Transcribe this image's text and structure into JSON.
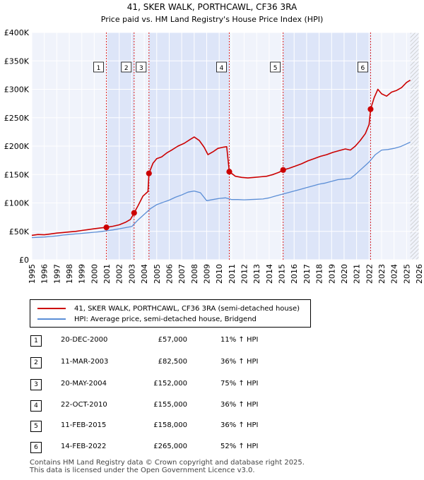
{
  "chart_data": {
    "type": "line",
    "title": "41, SKER WALK, PORTHCAWL, CF36 3RA",
    "subtitle": "Price paid vs. HM Land Registry's House Price Index (HPI)",
    "xlabel": "",
    "ylabel": "",
    "xlim": [
      1995,
      2026
    ],
    "ylim": [
      0,
      400000
    ],
    "y_ticks": [
      {
        "value": 0,
        "label": "£0"
      },
      {
        "value": 50000,
        "label": "£50K"
      },
      {
        "value": 100000,
        "label": "£100K"
      },
      {
        "value": 150000,
        "label": "£150K"
      },
      {
        "value": 200000,
        "label": "£200K"
      },
      {
        "value": 250000,
        "label": "£250K"
      },
      {
        "value": 300000,
        "label": "£300K"
      },
      {
        "value": 350000,
        "label": "£350K"
      },
      {
        "value": 400000,
        "label": "£400K"
      }
    ],
    "x_ticks": [
      "1995",
      "1996",
      "1997",
      "1998",
      "1999",
      "2000",
      "2001",
      "2002",
      "2003",
      "2004",
      "2005",
      "2006",
      "2007",
      "2008",
      "2009",
      "2010",
      "2011",
      "2012",
      "2013",
      "2014",
      "2015",
      "2016",
      "2017",
      "2018",
      "2019",
      "2020",
      "2021",
      "2022",
      "2023",
      "2024",
      "2025",
      "2026"
    ],
    "grid": true,
    "forecast_start": 2025.3,
    "series": [
      {
        "name": "41, SKER WALK, PORTHCAWL, CF36 3RA (semi-detached house)",
        "color": "#cc0000",
        "points": [
          [
            1995.0,
            43000
          ],
          [
            1995.5,
            44500
          ],
          [
            1996.0,
            44000
          ],
          [
            1996.5,
            45500
          ],
          [
            1997.0,
            47000
          ],
          [
            1997.5,
            48000
          ],
          [
            1998.0,
            49000
          ],
          [
            1998.5,
            50000
          ],
          [
            1999.0,
            51500
          ],
          [
            1999.5,
            53000
          ],
          [
            2000.0,
            54500
          ],
          [
            2000.5,
            56000
          ],
          [
            2000.97,
            57000
          ],
          [
            2001.5,
            59000
          ],
          [
            2002.0,
            61500
          ],
          [
            2002.5,
            66000
          ],
          [
            2002.9,
            71000
          ],
          [
            2003.19,
            82500
          ],
          [
            2003.5,
            95000
          ],
          [
            2003.9,
            112000
          ],
          [
            2004.3,
            120000
          ],
          [
            2004.38,
            152000
          ],
          [
            2004.7,
            170000
          ],
          [
            2005.0,
            178000
          ],
          [
            2005.4,
            181000
          ],
          [
            2005.8,
            188000
          ],
          [
            2006.2,
            193000
          ],
          [
            2006.7,
            200000
          ],
          [
            2007.2,
            205000
          ],
          [
            2007.7,
            212000
          ],
          [
            2008.0,
            216000
          ],
          [
            2008.4,
            210000
          ],
          [
            2008.8,
            198000
          ],
          [
            2009.1,
            185000
          ],
          [
            2009.5,
            190000
          ],
          [
            2009.9,
            196000
          ],
          [
            2010.3,
            198000
          ],
          [
            2010.6,
            199000
          ],
          [
            2010.81,
            155000
          ],
          [
            2011.3,
            147000
          ],
          [
            2011.8,
            145000
          ],
          [
            2012.3,
            144000
          ],
          [
            2012.8,
            145000
          ],
          [
            2013.3,
            146000
          ],
          [
            2013.8,
            147000
          ],
          [
            2014.3,
            150000
          ],
          [
            2014.8,
            154000
          ],
          [
            2015.12,
            158000
          ],
          [
            2015.6,
            161000
          ],
          [
            2016.1,
            165000
          ],
          [
            2016.6,
            169000
          ],
          [
            2017.1,
            174000
          ],
          [
            2017.6,
            178000
          ],
          [
            2018.1,
            182000
          ],
          [
            2018.6,
            185000
          ],
          [
            2019.1,
            189000
          ],
          [
            2019.6,
            192000
          ],
          [
            2020.1,
            195000
          ],
          [
            2020.5,
            193000
          ],
          [
            2020.9,
            200000
          ],
          [
            2021.3,
            210000
          ],
          [
            2021.7,
            222000
          ],
          [
            2022.0,
            238000
          ],
          [
            2022.12,
            265000
          ],
          [
            2022.4,
            285000
          ],
          [
            2022.7,
            300000
          ],
          [
            2023.0,
            292000
          ],
          [
            2023.4,
            288000
          ],
          [
            2023.8,
            295000
          ],
          [
            2024.2,
            298000
          ],
          [
            2024.6,
            303000
          ],
          [
            2025.0,
            312000
          ],
          [
            2025.3,
            316000
          ]
        ]
      },
      {
        "name": "HPI: Average price, semi-detached house, Bridgend",
        "color": "#5b8ed6",
        "points": [
          [
            1995.0,
            39000
          ],
          [
            1995.5,
            39500
          ],
          [
            1996.0,
            40000
          ],
          [
            1996.5,
            41000
          ],
          [
            1997.0,
            42000
          ],
          [
            1997.5,
            43500
          ],
          [
            1998.0,
            44500
          ],
          [
            1998.5,
            45500
          ],
          [
            1999.0,
            46500
          ],
          [
            1999.5,
            47500
          ],
          [
            2000.0,
            48500
          ],
          [
            2000.5,
            49500
          ],
          [
            2001.0,
            51000
          ],
          [
            2001.5,
            52500
          ],
          [
            2002.0,
            54500
          ],
          [
            2002.5,
            56500
          ],
          [
            2003.0,
            58500
          ],
          [
            2003.5,
            70000
          ],
          [
            2004.0,
            80000
          ],
          [
            2004.5,
            90000
          ],
          [
            2005.0,
            97000
          ],
          [
            2005.5,
            101000
          ],
          [
            2006.0,
            105000
          ],
          [
            2006.5,
            110000
          ],
          [
            2007.0,
            114000
          ],
          [
            2007.5,
            119000
          ],
          [
            2008.0,
            121000
          ],
          [
            2008.5,
            118000
          ],
          [
            2009.0,
            104000
          ],
          [
            2009.5,
            106000
          ],
          [
            2010.0,
            108000
          ],
          [
            2010.5,
            109000
          ],
          [
            2011.0,
            106000
          ],
          [
            2011.5,
            106000
          ],
          [
            2012.0,
            105500
          ],
          [
            2012.5,
            106000
          ],
          [
            2013.0,
            106500
          ],
          [
            2013.5,
            107000
          ],
          [
            2014.0,
            109000
          ],
          [
            2014.5,
            112000
          ],
          [
            2015.0,
            115000
          ],
          [
            2015.5,
            118000
          ],
          [
            2016.0,
            121000
          ],
          [
            2016.5,
            124000
          ],
          [
            2017.0,
            127000
          ],
          [
            2017.5,
            130000
          ],
          [
            2018.0,
            133000
          ],
          [
            2018.5,
            135000
          ],
          [
            2019.0,
            138000
          ],
          [
            2019.5,
            141000
          ],
          [
            2020.0,
            142000
          ],
          [
            2020.5,
            143000
          ],
          [
            2020.9,
            150000
          ],
          [
            2021.3,
            158000
          ],
          [
            2021.7,
            166000
          ],
          [
            2022.0,
            172000
          ],
          [
            2022.5,
            185000
          ],
          [
            2023.0,
            193000
          ],
          [
            2023.5,
            194000
          ],
          [
            2024.0,
            196000
          ],
          [
            2024.5,
            199000
          ],
          [
            2025.0,
            204000
          ],
          [
            2025.3,
            207000
          ]
        ]
      }
    ],
    "transactions": [
      {
        "n": "1",
        "x": 2000.97,
        "price": 57000
      },
      {
        "n": "2",
        "x": 2003.19,
        "price": 82500
      },
      {
        "n": "3",
        "x": 2004.38,
        "price": 152000
      },
      {
        "n": "4",
        "x": 2010.81,
        "price": 155000
      },
      {
        "n": "5",
        "x": 2015.12,
        "price": 158000
      },
      {
        "n": "6",
        "x": 2022.12,
        "price": 265000
      }
    ],
    "shaded_spans": [
      [
        2000.97,
        2003.19
      ],
      [
        2004.38,
        2010.81
      ],
      [
        2015.12,
        2022.12
      ]
    ]
  },
  "legend": {
    "property_label": "41, SKER WALK, PORTHCAWL, CF36 3RA (semi-detached house)",
    "hpi_label": "HPI: Average price, semi-detached house, Bridgend"
  },
  "table": [
    {
      "num": "1",
      "date": "20-DEC-2000",
      "price": "£57,000",
      "hpi": "11% ↑ HPI"
    },
    {
      "num": "2",
      "date": "11-MAR-2003",
      "price": "£82,500",
      "hpi": "36% ↑ HPI"
    },
    {
      "num": "3",
      "date": "20-MAY-2004",
      "price": "£152,000",
      "hpi": "75% ↑ HPI"
    },
    {
      "num": "4",
      "date": "22-OCT-2010",
      "price": "£155,000",
      "hpi": "36% ↑ HPI"
    },
    {
      "num": "5",
      "date": "11-FEB-2015",
      "price": "£158,000",
      "hpi": "36% ↑ HPI"
    },
    {
      "num": "6",
      "date": "14-FEB-2022",
      "price": "£265,000",
      "hpi": "52% ↑ HPI"
    }
  ],
  "footer": {
    "line1": "Contains HM Land Registry data © Crown copyright and database right 2025.",
    "line2": "This data is licensed under the Open Government Licence v3.0."
  }
}
